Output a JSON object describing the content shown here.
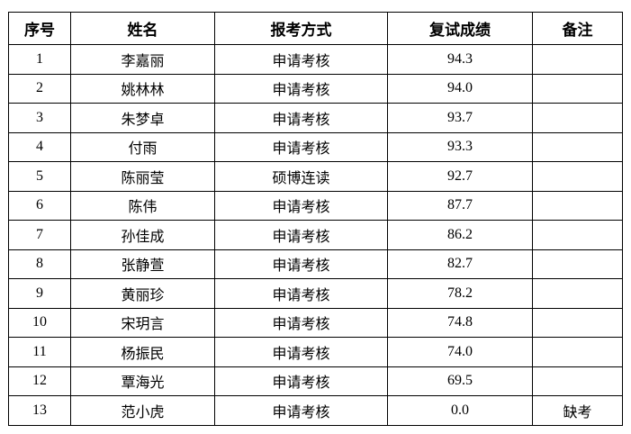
{
  "headers": [
    "序号",
    "姓名",
    "报考方式",
    "复试成绩",
    "备注"
  ],
  "rows": [
    {
      "no": "1",
      "name": "李嘉丽",
      "method": "申请考核",
      "score": "94.3",
      "note": ""
    },
    {
      "no": "2",
      "name": "姚林林",
      "method": "申请考核",
      "score": "94.0",
      "note": ""
    },
    {
      "no": "3",
      "name": "朱梦卓",
      "method": "申请考核",
      "score": "93.7",
      "note": ""
    },
    {
      "no": "4",
      "name": "付雨",
      "method": "申请考核",
      "score": "93.3",
      "note": ""
    },
    {
      "no": "5",
      "name": "陈丽莹",
      "method": "硕博连读",
      "score": "92.7",
      "note": ""
    },
    {
      "no": "6",
      "name": "陈伟",
      "method": "申请考核",
      "score": "87.7",
      "note": ""
    },
    {
      "no": "7",
      "name": "孙佳成",
      "method": "申请考核",
      "score": "86.2",
      "note": ""
    },
    {
      "no": "8",
      "name": "张静萱",
      "method": "申请考核",
      "score": "82.7",
      "note": ""
    },
    {
      "no": "9",
      "name": "黄丽珍",
      "method": "申请考核",
      "score": "78.2",
      "note": ""
    },
    {
      "no": "10",
      "name": "宋玥言",
      "method": "申请考核",
      "score": "74.8",
      "note": ""
    },
    {
      "no": "11",
      "name": "杨振民",
      "method": "申请考核",
      "score": "74.0",
      "note": ""
    },
    {
      "no": "12",
      "name": "覃海光",
      "method": "申请考核",
      "score": "69.5",
      "note": ""
    },
    {
      "no": "13",
      "name": "范小虎",
      "method": "申请考核",
      "score": "0.0",
      "note": "缺考"
    }
  ]
}
